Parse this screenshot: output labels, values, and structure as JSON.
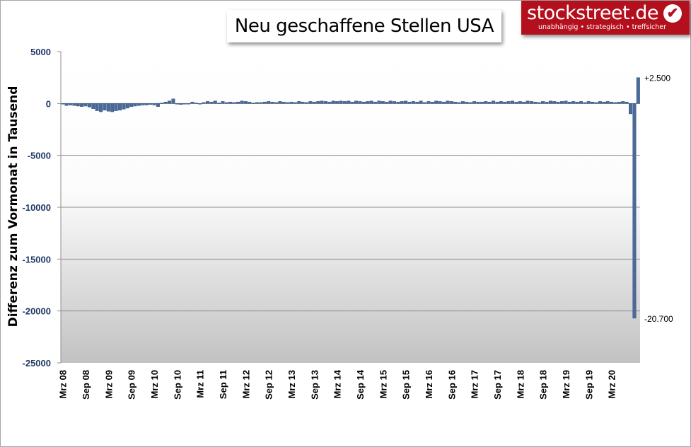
{
  "header": {
    "title": "Neu geschaffene Stellen USA",
    "logo_name": "stockstreet.de",
    "logo_tagline": "unabhängig • strategisch • treffsicher",
    "logo_icon": "checkmark-icon"
  },
  "colors": {
    "bar_fill": "#4a6a9a",
    "bar_stroke": "#2b4878",
    "axis_text": "#1f3864",
    "logo_red": "#b40f1c"
  },
  "chart_data": {
    "type": "bar",
    "title": "Neu geschaffene Stellen USA",
    "xlabel": "",
    "ylabel": "Differenz zum Vormonat in Tausend",
    "ylim": [
      -25000,
      5000
    ],
    "yticks": [
      5000,
      0,
      -5000,
      -10000,
      -15000,
      -20000,
      -25000
    ],
    "grid": true,
    "x_tick_labels": [
      "Mrz 08",
      "Sep 08",
      "Mrz 09",
      "Sep 09",
      "Mrz 10",
      "Sep 10",
      "Mrz 11",
      "Sep 11",
      "Mrz 12",
      "Sep 12",
      "Mrz 13",
      "Sep 13",
      "Mrz 14",
      "Sep 14",
      "Mrz 15",
      "Sep 15",
      "Mrz 16",
      "Sep 16",
      "Mrz 17",
      "Sep 17",
      "Mrz 18",
      "Sep 18",
      "Mrz 19",
      "Sep 19",
      "Mrz 20"
    ],
    "start_month": "Mrz 08",
    "annotations": [
      {
        "text": "+2.500",
        "value": 2500
      },
      {
        "text": "-20.700",
        "value": -20700
      }
    ],
    "values": [
      -50,
      -200,
      -150,
      -200,
      -250,
      -300,
      -250,
      -350,
      -500,
      -700,
      -800,
      -650,
      -750,
      -800,
      -700,
      -650,
      -550,
      -450,
      -300,
      -250,
      -200,
      -150,
      -150,
      -100,
      -150,
      -300,
      50,
      150,
      250,
      450,
      -50,
      -100,
      -50,
      -50,
      150,
      50,
      0,
      100,
      200,
      150,
      250,
      50,
      200,
      100,
      150,
      100,
      150,
      250,
      200,
      150,
      50,
      100,
      100,
      150,
      200,
      150,
      100,
      200,
      150,
      100,
      150,
      100,
      200,
      150,
      100,
      200,
      150,
      200,
      250,
      200,
      150,
      250,
      200,
      250,
      200,
      250,
      150,
      250,
      200,
      150,
      200,
      250,
      150,
      250,
      200,
      150,
      250,
      200,
      150,
      200,
      250,
      150,
      200,
      150,
      250,
      100,
      200,
      150,
      250,
      200,
      150,
      250,
      200,
      150,
      100,
      200,
      150,
      100,
      200,
      150,
      150,
      200,
      150,
      250,
      150,
      200,
      150,
      200,
      250,
      150,
      200,
      150,
      250,
      200,
      150,
      100,
      200,
      150,
      250,
      200,
      150,
      200,
      250,
      150,
      200,
      150,
      200,
      100,
      200,
      150,
      100,
      200,
      150,
      200,
      150,
      100,
      150,
      200,
      150,
      -1000,
      -20700,
      2500
    ]
  }
}
